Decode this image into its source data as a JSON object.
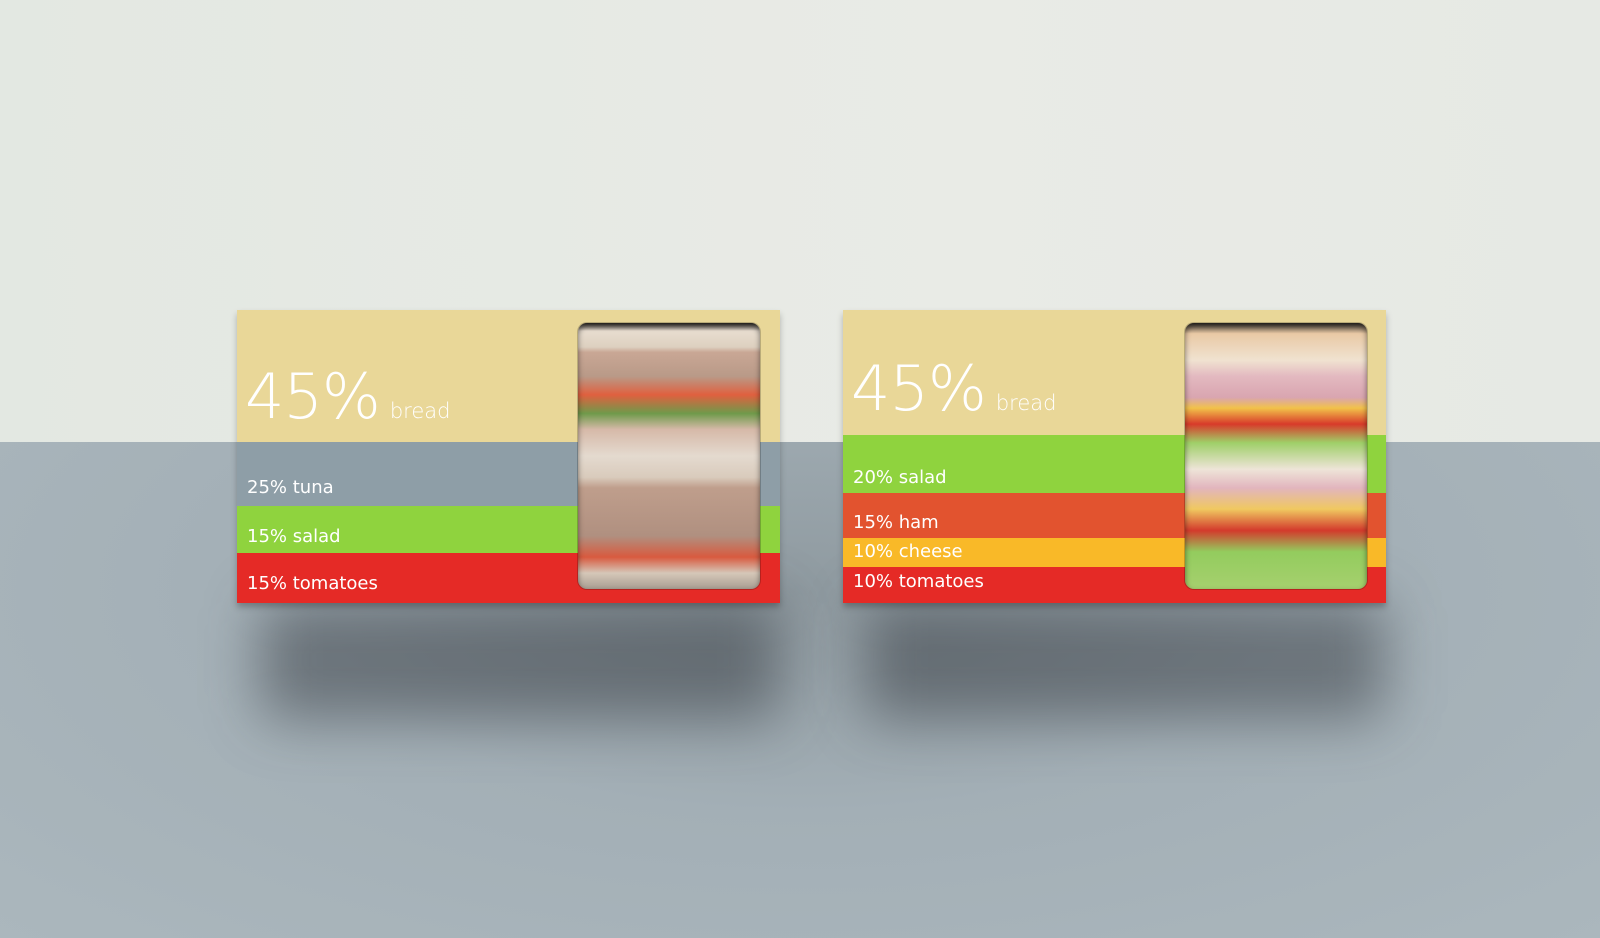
{
  "packages": [
    {
      "headline": {
        "percent": "45%",
        "ingredient": "bread"
      },
      "ingredients": [
        {
          "label": "25% tuna",
          "color": "#8e9ea7"
        },
        {
          "label": "15% salad",
          "color": "#8fd33e"
        },
        {
          "label": "15% tomatoes",
          "color": "#e52a26"
        }
      ],
      "bread_color": "#e9d798",
      "window_content": "tuna-sandwich"
    },
    {
      "headline": {
        "percent": "45%",
        "ingredient": "bread"
      },
      "ingredients": [
        {
          "label": "20% salad",
          "color": "#8fd33e"
        },
        {
          "label": "15% ham",
          "color": "#e2532f"
        },
        {
          "label": "10% cheese",
          "color": "#f9b928"
        },
        {
          "label": "10% tomatoes",
          "color": "#e52a26"
        }
      ],
      "bread_color": "#e9d798",
      "window_content": "ham-cheese-sandwich"
    }
  ]
}
